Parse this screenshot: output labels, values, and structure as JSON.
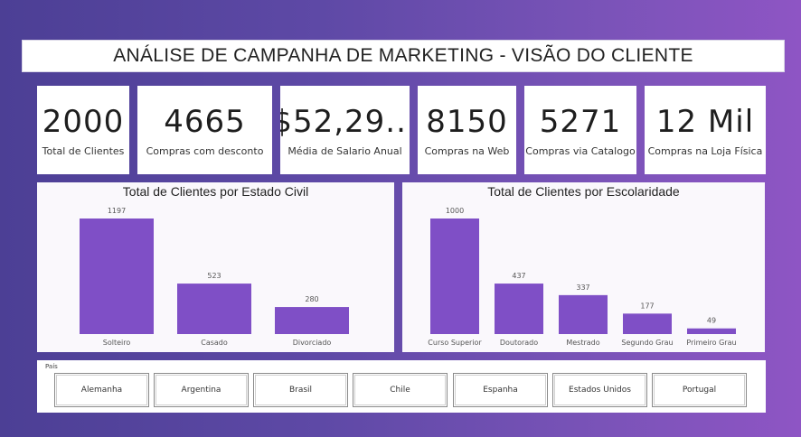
{
  "page": {
    "title": "ANÁLISE DE CAMPANHA DE MARKETING - VISÃO DO CLIENTE"
  },
  "kpis": [
    {
      "value": "2000",
      "label": "Total de Clientes"
    },
    {
      "value": "4665",
      "label": "Compras com desconto"
    },
    {
      "value": "$52,29...",
      "label": "Média de Salario Anual"
    },
    {
      "value": "8150",
      "label": "Compras na Web"
    },
    {
      "value": "5271",
      "label": "Compras via Catalogo"
    },
    {
      "value": "12 Mil",
      "label": "Compras na Loja Física"
    }
  ],
  "colors": {
    "bar": "#7f4fc6",
    "background_start": "#4c3f95",
    "background_end": "#8e55c4"
  },
  "chart_data": [
    {
      "type": "bar",
      "title": "Total de Clientes por Estado Civil",
      "categories": [
        "Solteiro",
        "Casado",
        "Divorciado"
      ],
      "values": [
        1197,
        523,
        280
      ],
      "data_labels": [
        "1197",
        "523",
        "280"
      ],
      "ylim": [
        0,
        1197
      ],
      "grid": false
    },
    {
      "type": "bar",
      "title": "Total de Clientes por Escolaridade",
      "categories": [
        "Curso Superior",
        "Doutorado",
        "Mestrado",
        "Segundo Grau",
        "Primeiro Grau"
      ],
      "values": [
        1000,
        437,
        337,
        177,
        49
      ],
      "data_labels": [
        "1000",
        "437",
        "337",
        "177",
        "49"
      ],
      "ylim": [
        0,
        1000
      ],
      "grid": false
    }
  ],
  "slicer": {
    "header": "País",
    "options": [
      "Alemanha",
      "Argentina",
      "Brasil",
      "Chile",
      "Espanha",
      "Estados Unidos",
      "Portugal"
    ]
  }
}
